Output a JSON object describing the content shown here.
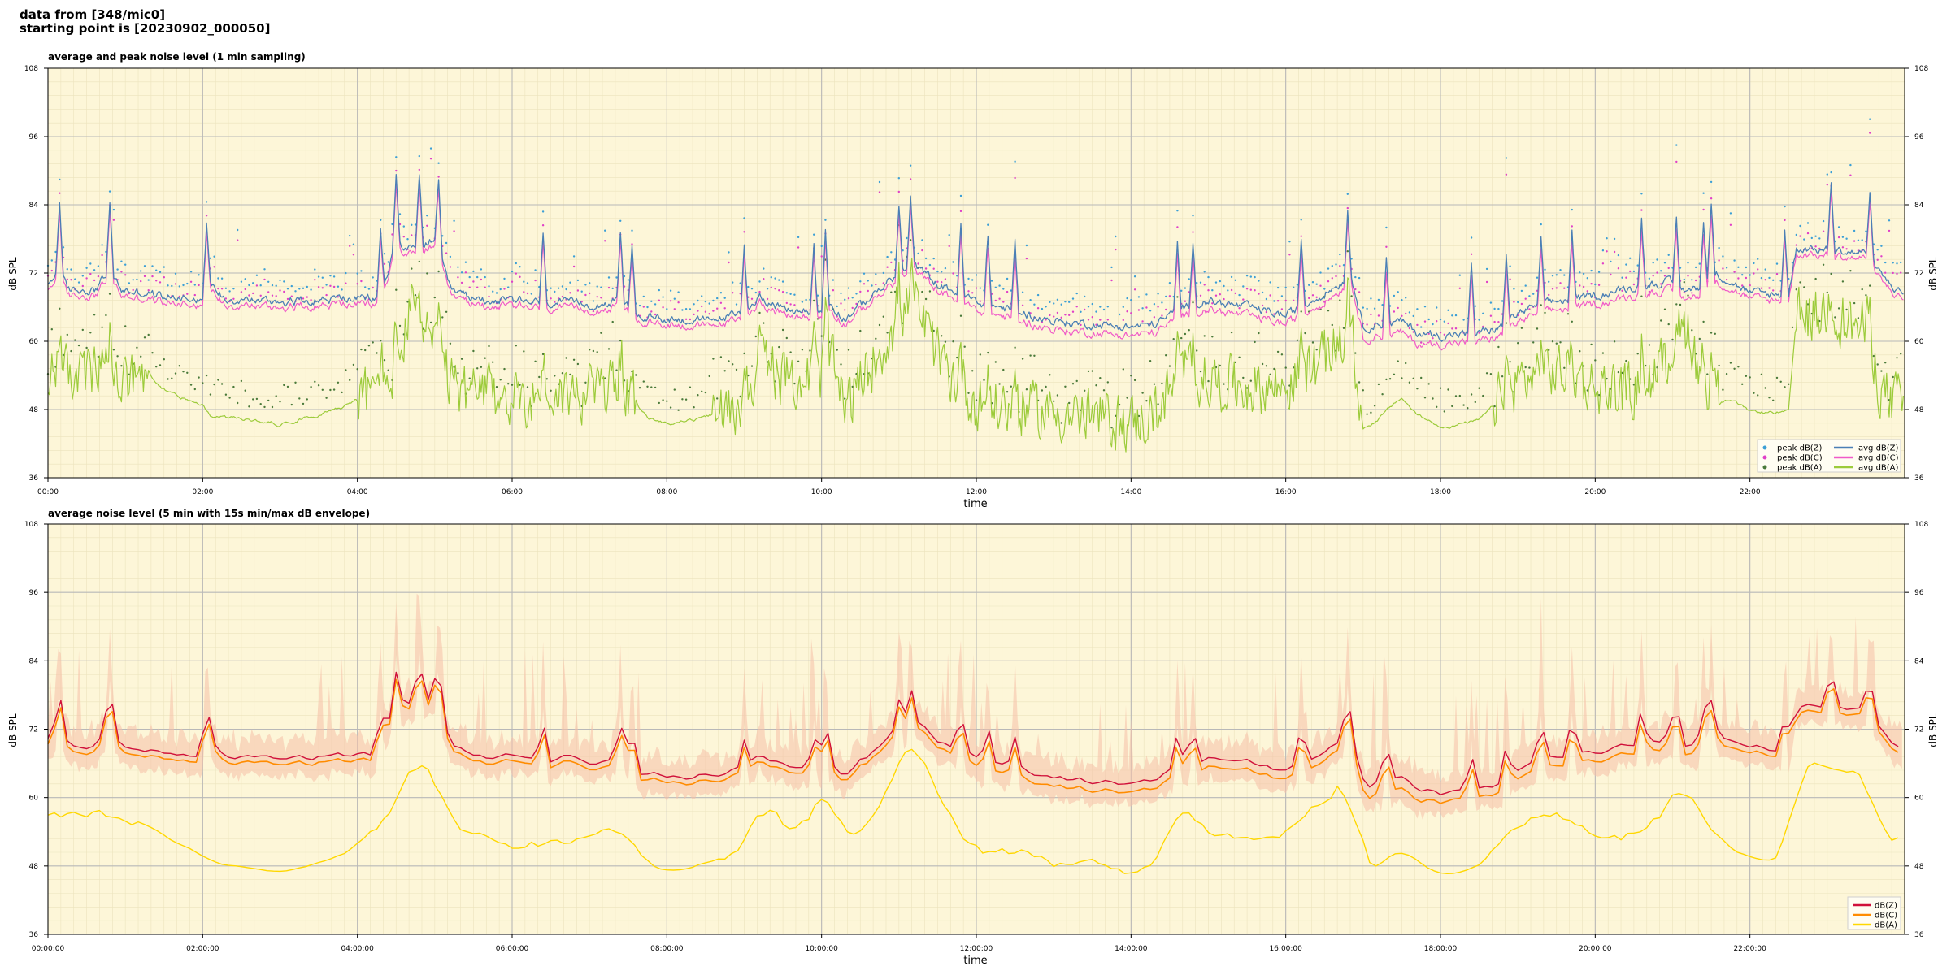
{
  "header": {
    "line1": "data from [348/mic0]",
    "line2": "starting point is [20230902_000050]"
  },
  "chart_data": [
    {
      "type": "line",
      "title": "average and peak noise level (1 min sampling)",
      "xlabel": "time",
      "ylabel": "dB SPL",
      "x_unit": "hours since start",
      "xlim": [
        0,
        24
      ],
      "ylim": [
        36,
        108
      ],
      "yticks": [
        36,
        48,
        60,
        72,
        84,
        96,
        108
      ],
      "xtick_labels": [
        "00:00",
        "02:00",
        "04:00",
        "06:00",
        "08:00",
        "10:00",
        "12:00",
        "14:00",
        "16:00",
        "18:00",
        "20:00",
        "22:00"
      ],
      "grid": true,
      "legend_position": "lower-right",
      "background": "#fdf6d8",
      "series": [
        {
          "name": "peak dB(Z)",
          "kind": "points",
          "color": "#3b9fd6",
          "base": "Z"
        },
        {
          "name": "peak dB(C)",
          "kind": "points",
          "color": "#e040c8",
          "base": "C"
        },
        {
          "name": "peak dB(A)",
          "kind": "points",
          "color": "#4a7a3a",
          "base": "A"
        },
        {
          "name": "avg dB(Z)",
          "kind": "line",
          "color": "#4a7fb5",
          "base": "Z"
        },
        {
          "name": "avg dB(C)",
          "kind": "line",
          "color": "#f05ac8",
          "base": "C"
        },
        {
          "name": "avg dB(A)",
          "kind": "line",
          "color": "#9ccb3a",
          "base": "A"
        }
      ],
      "profile": {
        "hours": [
          0,
          0.15,
          0.25,
          0.6,
          0.8,
          0.95,
          1.5,
          2.0,
          2.1,
          2.3,
          3.0,
          3.8,
          4.3,
          4.5,
          4.7,
          5.0,
          5.2,
          5.5,
          6.0,
          7.0,
          7.45,
          7.6,
          8.0,
          8.5,
          9.0,
          9.2,
          9.5,
          10.0,
          10.05,
          10.3,
          11.0,
          11.2,
          11.5,
          12.0,
          12.3,
          13.0,
          14.0,
          14.3,
          14.7,
          15.0,
          15.5,
          16.0,
          16.5,
          16.85,
          17.0,
          17.5,
          17.7,
          18.0,
          18.5,
          18.8,
          19.0,
          19.5,
          20.0,
          20.5,
          20.9,
          21.2,
          21.4,
          21.5,
          22.0,
          22.5,
          22.6,
          23.0,
          23.5,
          23.7,
          24.0
        ],
        "Z": [
          69.5,
          73.0,
          69.0,
          69.0,
          72.5,
          69.0,
          68.0,
          67.5,
          70.0,
          67.5,
          67.0,
          67.5,
          67.5,
          77.5,
          76.0,
          78.0,
          69.0,
          67.5,
          67.0,
          66.5,
          67.0,
          64.5,
          64.0,
          63.5,
          65.0,
          68.0,
          65.5,
          65.0,
          67.5,
          64.0,
          72.0,
          73.5,
          70.0,
          67.0,
          66.0,
          63.5,
          62.5,
          63.0,
          66.0,
          67.0,
          66.0,
          64.5,
          68.5,
          71.5,
          62.5,
          63.5,
          61.5,
          61.0,
          61.5,
          62.5,
          65.0,
          67.0,
          68.0,
          69.5,
          70.5,
          69.0,
          69.5,
          72.5,
          68.5,
          68.0,
          76.5,
          76.0,
          75.5,
          71.5,
          68.0
        ],
        "C": [
          68.5,
          72.0,
          68.0,
          68.0,
          71.5,
          68.0,
          67.0,
          66.5,
          69.0,
          66.5,
          66.0,
          66.5,
          66.5,
          76.5,
          75.0,
          77.0,
          68.0,
          66.5,
          66.0,
          65.5,
          66.0,
          63.5,
          63.0,
          62.5,
          64.0,
          67.0,
          64.5,
          64.0,
          66.5,
          63.0,
          71.0,
          72.5,
          69.0,
          65.5,
          64.5,
          62.0,
          61.0,
          61.5,
          64.5,
          65.5,
          64.5,
          63.0,
          67.0,
          70.5,
          60.5,
          61.5,
          59.5,
          59.5,
          60.0,
          61.0,
          63.5,
          65.5,
          66.5,
          68.0,
          69.0,
          67.5,
          68.0,
          71.0,
          67.5,
          67.0,
          75.5,
          75.0,
          74.5,
          70.5,
          67.0
        ],
        "A": [
          51.0,
          57.5,
          54.0,
          54.0,
          54.5,
          53.0,
          51.0,
          49.0,
          47.0,
          46.5,
          45.5,
          48.5,
          52.0,
          55.0,
          66.0,
          60.0,
          52.0,
          51.0,
          50.0,
          51.0,
          53.0,
          46.0,
          45.5,
          46.5,
          49.0,
          58.0,
          53.0,
          54.0,
          60.0,
          48.0,
          64.0,
          67.0,
          57.0,
          49.0,
          48.5,
          47.5,
          45.5,
          47.0,
          55.0,
          53.0,
          52.0,
          52.0,
          57.0,
          62.0,
          44.0,
          50.0,
          47.0,
          45.0,
          46.0,
          50.0,
          53.0,
          55.0,
          52.0,
          51.0,
          56.0,
          63.0,
          51.0,
          52.0,
          47.5,
          47.5,
          64.0,
          65.0,
          62.0,
          51.0,
          48.5
        ]
      },
      "spikes": [
        0.15,
        0.8,
        2.05,
        4.3,
        4.5,
        4.8,
        5.05,
        6.4,
        7.4,
        7.55,
        9.0,
        9.9,
        10.05,
        11.0,
        11.15,
        11.8,
        12.15,
        12.5,
        14.6,
        14.8,
        16.2,
        16.8,
        17.3,
        18.4,
        18.85,
        19.3,
        19.7,
        20.6,
        21.05,
        21.4,
        21.5,
        22.45,
        23.05,
        23.55
      ]
    },
    {
      "type": "area",
      "title": "average noise level (5 min with 15s min/max dB envelope)",
      "xlabel": "time",
      "ylabel": "dB SPL",
      "xlim": [
        0,
        24
      ],
      "ylim": [
        36,
        108
      ],
      "yticks": [
        36,
        48,
        60,
        72,
        84,
        96,
        108
      ],
      "xtick_labels": [
        "00:00:00",
        "02:00:00",
        "04:00:00",
        "06:00:00",
        "08:00:00",
        "10:00:00",
        "12:00:00",
        "14:00:00",
        "16:00:00",
        "18:00:00",
        "20:00:00",
        "22:00:00"
      ],
      "grid": true,
      "legend_position": "lower-right",
      "background": "#fdf6d8",
      "envelope_color": "#f5c0a8",
      "series": [
        {
          "name": "dB(Z)",
          "kind": "line",
          "color": "#d0103a",
          "base": "Z"
        },
        {
          "name": "dB(C)",
          "kind": "line",
          "color": "#ff8c00",
          "base": "C"
        },
        {
          "name": "dB(A)",
          "kind": "line",
          "color": "#ffd700",
          "base": "A"
        }
      ]
    }
  ]
}
